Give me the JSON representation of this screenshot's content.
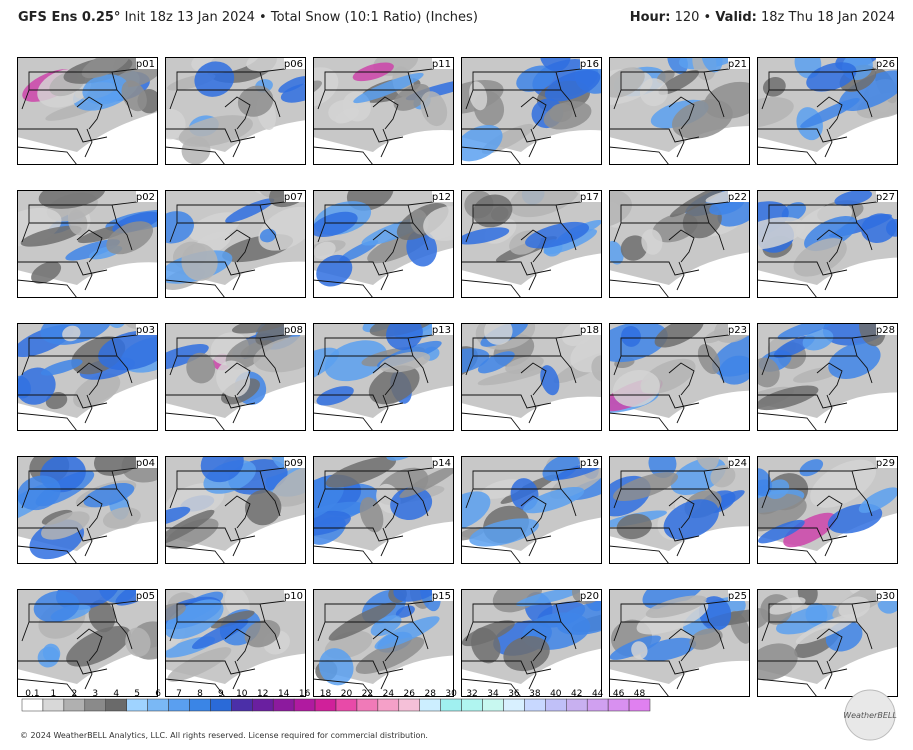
{
  "header": {
    "model": "GFS Ens 0.25°",
    "info": "Init 18z 13 Jan 2024 • Total Snow (10:1 Ratio) (Inches)",
    "hour_label": "Hour:",
    "hour": "120 •",
    "valid_label": "Valid:",
    "valid": "18z Thu 18 Jan 2024"
  },
  "panels": [
    "p01",
    "p06",
    "p11",
    "p16",
    "p21",
    "p26",
    "p02",
    "p07",
    "p12",
    "p17",
    "p22",
    "p27",
    "p03",
    "p08",
    "p13",
    "p18",
    "p23",
    "p28",
    "p04",
    "p09",
    "p14",
    "p19",
    "p24",
    "p29",
    "p05",
    "p10",
    "p15",
    "p20",
    "p25",
    "p30"
  ],
  "colorbar": {
    "labels": [
      "0.1",
      "1",
      "2",
      "3",
      "4",
      "5",
      "6",
      "7",
      "8",
      "9",
      "10",
      "12",
      "14",
      "16",
      "18",
      "20",
      "22",
      "24",
      "26",
      "28",
      "30",
      "32",
      "34",
      "36",
      "38",
      "40",
      "42",
      "44",
      "46",
      "48"
    ]
  },
  "footer": {
    "copyright": "© 2024 WeatherBELL Analytics, LLC. All rights reserved. License required for commercial distribution.",
    "logo": "WeatherBELL"
  }
}
